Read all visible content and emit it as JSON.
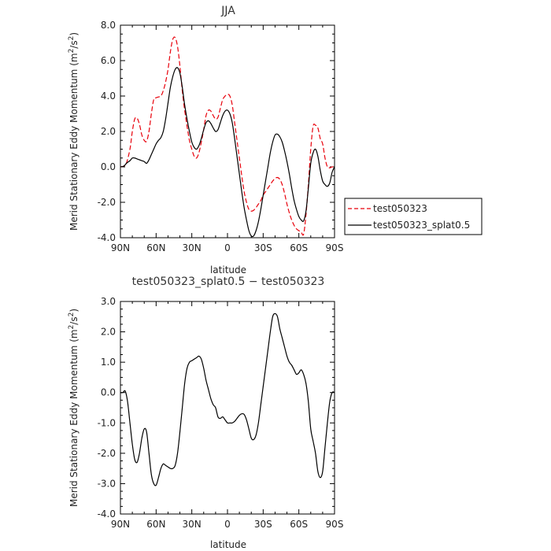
{
  "chart_data": [
    {
      "type": "line",
      "title": "JJA",
      "xlabel": "latitude",
      "ylabel_main": "Merid Stationary Eddy Momentum",
      "ylabel_unit": "(m",
      "ylabel_sup1": "2",
      "ylabel_mid": "/s",
      "ylabel_sup2": "2",
      "ylabel_end": ")",
      "xlim": [
        -90,
        90
      ],
      "ylim": [
        -4.0,
        8.0
      ],
      "xticks": [
        -90,
        -60,
        -30,
        0,
        30,
        60,
        90
      ],
      "xtick_labels": [
        "90N",
        "60N",
        "30N",
        "0",
        "30S",
        "60S",
        "90S"
      ],
      "yticks": [
        -4,
        -2,
        0,
        2,
        4,
        6,
        8
      ],
      "ytick_labels": [
        "-4.0",
        "-2.0",
        "0.0",
        "2.0",
        "4.0",
        "6.0",
        "8.0"
      ],
      "legend": {
        "placement": "right",
        "entries": [
          "test050323",
          "test050323_splat0.5"
        ]
      },
      "series": [
        {
          "name": "test050323",
          "color": "#e8000b",
          "style": "dashed",
          "x": [
            -90,
            -87,
            -85,
            -82,
            -80,
            -78,
            -76,
            -74,
            -72,
            -70,
            -68,
            -66,
            -64,
            -62,
            -60,
            -58,
            -56,
            -54,
            -52,
            -50,
            -48,
            -46,
            -44,
            -42,
            -40,
            -38,
            -36,
            -34,
            -32,
            -30,
            -28,
            -26,
            -24,
            -22,
            -20,
            -18,
            -16,
            -14,
            -12,
            -10,
            -8,
            -6,
            -4,
            -2,
            0,
            2,
            4,
            6,
            8,
            10,
            12,
            14,
            16,
            18,
            20,
            22,
            24,
            26,
            28,
            30,
            32,
            34,
            36,
            38,
            40,
            42,
            44,
            46,
            48,
            50,
            52,
            54,
            56,
            58,
            60,
            62,
            64,
            66,
            68,
            70,
            72,
            74,
            76,
            78,
            80,
            82,
            84,
            86,
            88,
            90
          ],
          "y": [
            0.0,
            0.05,
            0.2,
            1.0,
            2.0,
            2.7,
            2.75,
            2.4,
            1.8,
            1.5,
            1.45,
            2.0,
            3.0,
            3.8,
            3.9,
            3.95,
            4.0,
            4.3,
            4.8,
            5.5,
            6.5,
            7.2,
            7.3,
            6.8,
            5.7,
            4.3,
            3.2,
            2.3,
            1.5,
            1.0,
            0.6,
            0.5,
            0.8,
            1.4,
            2.1,
            2.9,
            3.2,
            3.15,
            2.9,
            2.7,
            2.8,
            3.3,
            3.8,
            4.0,
            4.1,
            4.0,
            3.5,
            2.5,
            1.5,
            0.5,
            -0.5,
            -1.4,
            -2.0,
            -2.4,
            -2.5,
            -2.45,
            -2.3,
            -2.1,
            -1.9,
            -1.6,
            -1.4,
            -1.2,
            -1.0,
            -0.8,
            -0.65,
            -0.6,
            -0.7,
            -1.0,
            -1.5,
            -2.1,
            -2.6,
            -3.0,
            -3.3,
            -3.5,
            -3.6,
            -3.7,
            -3.8,
            -2.7,
            -1.0,
            1.0,
            2.3,
            2.35,
            2.2,
            1.6,
            1.3,
            0.5,
            0.0,
            -0.05,
            0.0,
            0.0
          ]
        },
        {
          "name": "test050323_splat0.5",
          "color": "#000000",
          "style": "solid",
          "x": [
            -90,
            -87,
            -85,
            -82,
            -80,
            -78,
            -76,
            -74,
            -72,
            -70,
            -68,
            -66,
            -64,
            -62,
            -60,
            -58,
            -56,
            -54,
            -52,
            -50,
            -48,
            -46,
            -44,
            -42,
            -40,
            -38,
            -36,
            -34,
            -32,
            -30,
            -28,
            -26,
            -24,
            -22,
            -20,
            -18,
            -16,
            -14,
            -12,
            -10,
            -8,
            -6,
            -4,
            -2,
            0,
            2,
            4,
            6,
            8,
            10,
            12,
            14,
            16,
            18,
            20,
            22,
            24,
            26,
            28,
            30,
            32,
            34,
            36,
            38,
            40,
            42,
            44,
            46,
            48,
            50,
            52,
            54,
            56,
            58,
            60,
            62,
            64,
            66,
            68,
            70,
            72,
            74,
            76,
            78,
            80,
            82,
            84,
            86,
            88,
            90
          ],
          "y": [
            0.0,
            0.05,
            0.2,
            0.35,
            0.5,
            0.5,
            0.45,
            0.4,
            0.35,
            0.3,
            0.2,
            0.4,
            0.7,
            1.0,
            1.3,
            1.5,
            1.65,
            2.0,
            2.7,
            3.6,
            4.5,
            5.1,
            5.5,
            5.6,
            5.3,
            4.5,
            3.5,
            2.7,
            2.0,
            1.4,
            1.1,
            1.0,
            1.2,
            1.6,
            2.1,
            2.5,
            2.6,
            2.45,
            2.2,
            2.0,
            2.1,
            2.5,
            2.9,
            3.15,
            3.2,
            3.0,
            2.5,
            1.6,
            0.6,
            -0.4,
            -1.4,
            -2.3,
            -3.0,
            -3.6,
            -3.9,
            -3.9,
            -3.6,
            -3.1,
            -2.4,
            -1.6,
            -0.8,
            0.0,
            0.8,
            1.4,
            1.8,
            1.85,
            1.7,
            1.4,
            0.9,
            0.3,
            -0.4,
            -1.2,
            -1.9,
            -2.4,
            -2.8,
            -3.0,
            -3.05,
            -2.5,
            -1.2,
            0.2,
            0.8,
            1.0,
            0.6,
            -0.2,
            -0.8,
            -1.0,
            -1.1,
            -0.9,
            -0.3,
            0.0
          ]
        }
      ]
    },
    {
      "type": "line",
      "title": "test050323_splat0.5 − test050323",
      "xlabel": "latitude",
      "ylabel_main": "Merid Stationary Eddy Momentum",
      "ylabel_unit": "(m",
      "ylabel_sup1": "2",
      "ylabel_mid": "/s",
      "ylabel_sup2": "2",
      "ylabel_end": ")",
      "xlim": [
        -90,
        90
      ],
      "ylim": [
        -4.0,
        3.0
      ],
      "xticks": [
        -90,
        -60,
        -30,
        0,
        30,
        60,
        90
      ],
      "xtick_labels": [
        "90N",
        "60N",
        "30N",
        "0",
        "30S",
        "60S",
        "90S"
      ],
      "yticks": [
        -4,
        -3,
        -2,
        -1,
        0,
        1,
        2,
        3
      ],
      "ytick_labels": [
        "-4.0",
        "-3.0",
        "-2.0",
        "-1.0",
        "0.0",
        "1.0",
        "2.0",
        "3.0"
      ],
      "series": [
        {
          "color": "#000000",
          "style": "solid",
          "x": [
            -90,
            -88,
            -86,
            -84,
            -82,
            -80,
            -78,
            -76,
            -74,
            -72,
            -70,
            -68,
            -66,
            -64,
            -62,
            -60,
            -58,
            -56,
            -54,
            -52,
            -50,
            -48,
            -46,
            -44,
            -42,
            -40,
            -38,
            -36,
            -34,
            -32,
            -30,
            -28,
            -26,
            -24,
            -22,
            -20,
            -18,
            -16,
            -14,
            -12,
            -10,
            -8,
            -6,
            -4,
            -2,
            0,
            2,
            4,
            6,
            8,
            10,
            12,
            14,
            16,
            18,
            20,
            22,
            24,
            26,
            28,
            30,
            32,
            34,
            36,
            38,
            40,
            42,
            44,
            46,
            48,
            50,
            52,
            54,
            56,
            58,
            60,
            62,
            64,
            66,
            68,
            70,
            72,
            74,
            76,
            78,
            80,
            82,
            84,
            86,
            88,
            90
          ],
          "y": [
            0.0,
            0.0,
            0.05,
            -0.3,
            -1.0,
            -1.7,
            -2.2,
            -2.3,
            -2.0,
            -1.5,
            -1.2,
            -1.3,
            -2.0,
            -2.7,
            -3.0,
            -3.05,
            -2.8,
            -2.5,
            -2.35,
            -2.4,
            -2.45,
            -2.5,
            -2.5,
            -2.4,
            -2.0,
            -1.3,
            -0.5,
            0.3,
            0.8,
            1.0,
            1.05,
            1.1,
            1.15,
            1.2,
            1.1,
            0.8,
            0.4,
            0.1,
            -0.2,
            -0.4,
            -0.5,
            -0.8,
            -0.85,
            -0.8,
            -0.9,
            -1.0,
            -1.0,
            -1.0,
            -0.95,
            -0.85,
            -0.75,
            -0.7,
            -0.72,
            -0.9,
            -1.2,
            -1.5,
            -1.55,
            -1.4,
            -1.0,
            -0.4,
            0.2,
            0.8,
            1.4,
            2.0,
            2.5,
            2.6,
            2.5,
            2.1,
            1.8,
            1.5,
            1.2,
            1.0,
            0.9,
            0.75,
            0.6,
            0.65,
            0.75,
            0.6,
            0.3,
            -0.3,
            -1.2,
            -1.6,
            -2.0,
            -2.6,
            -2.8,
            -2.6,
            -1.8,
            -1.0,
            -0.3,
            0.0,
            0.0
          ]
        }
      ]
    }
  ]
}
